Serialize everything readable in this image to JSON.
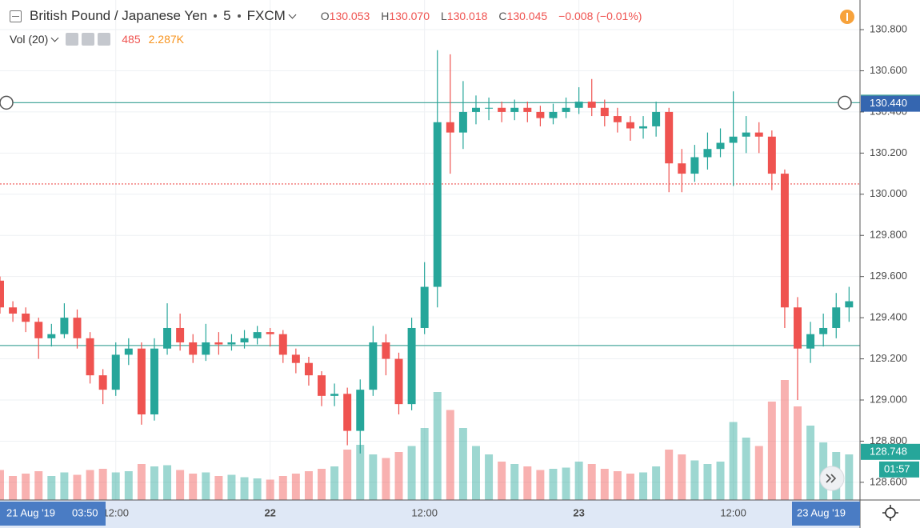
{
  "header": {
    "symbol": "British Pound / Japanese Yen",
    "interval": "5",
    "exchange": "FXCM",
    "ohlc": [
      {
        "key": "O",
        "value": "130.053"
      },
      {
        "key": "H",
        "value": "130.070"
      },
      {
        "key": "L",
        "value": "130.018"
      },
      {
        "key": "C",
        "value": "130.045"
      }
    ],
    "change": "−0.008 (−0.01%)"
  },
  "volume_legend": {
    "name": "Vol (20)",
    "value": "485",
    "ma": "2.287K"
  },
  "chart_data": {
    "type": "candlestick",
    "x": [
      3,
      4,
      5,
      6,
      7,
      8,
      9,
      10,
      11,
      12,
      13,
      14,
      15,
      16,
      17,
      18,
      19,
      20,
      21,
      22,
      23,
      24,
      25,
      26,
      27,
      28,
      29,
      30,
      31,
      32,
      33,
      34,
      35,
      36,
      37,
      38,
      39,
      40,
      41,
      42,
      43,
      44,
      45,
      46,
      47,
      48,
      49,
      50,
      51,
      52,
      53,
      54,
      55,
      56,
      57,
      58,
      59,
      60,
      61,
      62,
      63,
      64,
      65,
      66,
      67,
      68,
      69
    ],
    "open": [
      129.58,
      129.45,
      129.42,
      129.38,
      129.3,
      129.32,
      129.4,
      129.3,
      129.12,
      129.05,
      129.22,
      129.25,
      128.93,
      129.25,
      129.35,
      129.28,
      129.22,
      129.28,
      129.27,
      129.28,
      129.3,
      129.33,
      129.32,
      129.22,
      129.18,
      129.12,
      129.02,
      129.03,
      128.85,
      129.05,
      129.28,
      129.2,
      128.98,
      129.35,
      129.55,
      130.35,
      130.3,
      130.4,
      130.42,
      130.42,
      130.4,
      130.42,
      130.4,
      130.37,
      130.4,
      130.42,
      130.45,
      130.42,
      130.38,
      130.35,
      130.32,
      130.33,
      130.4,
      130.15,
      130.1,
      130.18,
      130.22,
      130.25,
      130.28,
      130.3,
      130.28,
      130.1,
      129.45,
      129.25,
      129.32,
      129.35,
      129.45
    ],
    "high": [
      129.6,
      129.48,
      129.45,
      129.4,
      129.37,
      129.47,
      129.44,
      129.33,
      129.15,
      129.28,
      129.3,
      129.28,
      129.3,
      129.47,
      129.42,
      129.32,
      129.37,
      129.33,
      129.32,
      129.34,
      129.36,
      129.35,
      129.34,
      129.25,
      129.21,
      129.14,
      129.08,
      129.06,
      129.1,
      129.36,
      129.32,
      129.23,
      129.4,
      129.67,
      130.7,
      130.68,
      130.55,
      130.48,
      130.47,
      130.45,
      130.46,
      130.45,
      130.43,
      130.44,
      130.47,
      130.52,
      130.56,
      130.46,
      130.42,
      130.38,
      130.38,
      130.45,
      130.42,
      130.22,
      130.24,
      130.3,
      130.32,
      130.5,
      130.38,
      130.35,
      130.31,
      130.12,
      129.5,
      129.38,
      129.42,
      129.52,
      129.55
    ],
    "low": [
      129.42,
      129.38,
      129.33,
      129.2,
      129.26,
      129.3,
      129.25,
      129.08,
      128.98,
      129.02,
      129.17,
      128.88,
      128.9,
      129.22,
      129.24,
      129.18,
      129.19,
      129.22,
      129.24,
      129.25,
      129.27,
      129.26,
      129.18,
      129.13,
      129.07,
      128.97,
      128.97,
      128.78,
      128.74,
      129.02,
      129.12,
      128.93,
      128.95,
      129.32,
      129.45,
      130.1,
      130.22,
      130.34,
      130.36,
      130.35,
      130.36,
      130.35,
      130.33,
      130.34,
      130.37,
      130.39,
      130.38,
      130.33,
      130.3,
      130.26,
      130.27,
      130.28,
      130.01,
      130.01,
      130.06,
      130.12,
      130.18,
      130.04,
      130.2,
      130.2,
      130.02,
      129.35,
      129.0,
      129.18,
      129.26,
      129.3,
      129.38
    ],
    "close": [
      129.45,
      129.42,
      129.38,
      129.3,
      129.32,
      129.4,
      129.3,
      129.12,
      129.05,
      129.22,
      129.25,
      128.93,
      129.25,
      129.35,
      129.28,
      129.22,
      129.28,
      129.27,
      129.28,
      129.3,
      129.33,
      129.32,
      129.22,
      129.18,
      129.12,
      129.02,
      129.03,
      128.85,
      129.05,
      129.28,
      129.2,
      128.98,
      129.35,
      129.55,
      130.35,
      130.3,
      130.4,
      130.42,
      130.42,
      130.4,
      130.42,
      130.4,
      130.37,
      130.4,
      130.42,
      130.45,
      130.42,
      130.38,
      130.35,
      130.32,
      130.33,
      130.4,
      130.15,
      130.1,
      130.18,
      130.22,
      130.25,
      130.28,
      130.3,
      130.28,
      130.1,
      129.45,
      129.25,
      129.32,
      129.35,
      129.45,
      129.48
    ],
    "volume": [
      250,
      200,
      220,
      240,
      200,
      230,
      210,
      250,
      260,
      230,
      240,
      300,
      280,
      290,
      250,
      220,
      230,
      200,
      210,
      190,
      180,
      170,
      200,
      220,
      240,
      260,
      280,
      420,
      460,
      380,
      350,
      400,
      450,
      600,
      900,
      750,
      600,
      450,
      380,
      320,
      300,
      280,
      250,
      260,
      270,
      320,
      300,
      260,
      240,
      220,
      230,
      280,
      420,
      380,
      330,
      300,
      320,
      650,
      520,
      450,
      820,
      1000,
      780,
      620,
      480,
      400,
      380
    ],
    "colors": {
      "up": "#26a69a",
      "down": "#ef5350"
    },
    "xlim": [
      3,
      69.85
    ],
    "xticks": [
      {
        "value": 12,
        "label": "12:00"
      },
      {
        "value": 24,
        "label": "22"
      },
      {
        "value": 36,
        "label": "12:00"
      },
      {
        "value": 48,
        "label": "23"
      },
      {
        "value": 60,
        "label": "12:00"
      }
    ],
    "ylim": [
      128.514,
      130.944
    ],
    "yticks": [
      {
        "value": 128.6,
        "label": "128.600"
      },
      {
        "value": 128.8,
        "label": "128.800"
      },
      {
        "value": 129,
        "label": "129.000"
      },
      {
        "value": 129.2,
        "label": "129.200"
      },
      {
        "value": 129.4,
        "label": "129.400"
      },
      {
        "value": 129.6,
        "label": "129.600"
      },
      {
        "value": 129.8,
        "label": "129.800"
      },
      {
        "value": 130,
        "label": "130.000"
      },
      {
        "value": 130.2,
        "label": "130.200"
      },
      {
        "value": 130.4,
        "label": "130.400"
      },
      {
        "value": 130.6,
        "label": "130.600"
      },
      {
        "value": 130.8,
        "label": "130.800"
      }
    ],
    "grid": true,
    "hlines": [
      {
        "value": 130.445,
        "color": "#4aa99e",
        "style": "solid",
        "handles": true
      },
      {
        "value": 129.265,
        "color": "#4aa99e",
        "style": "solid"
      },
      {
        "value": 130.05,
        "color": "#ef5350",
        "style": "dotted"
      }
    ],
    "price_labels": [
      {
        "value": 130.44,
        "label": "130.440",
        "color": "#3566b0"
      },
      {
        "value": 128.748,
        "label": "128.748",
        "color": "#26a69a"
      }
    ],
    "countdown": "01:57",
    "crosshair": {
      "date": "21 Aug '19",
      "time": "03:50"
    },
    "end_label": "23 Aug '19"
  }
}
